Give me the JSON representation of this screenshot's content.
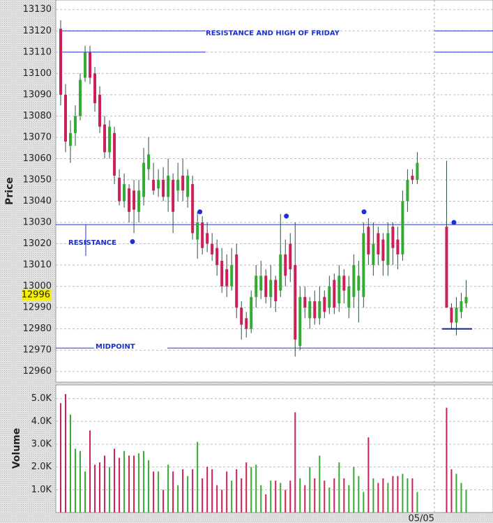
{
  "chart_data": [
    {
      "type": "candlestick",
      "axis_label": "Price",
      "x": [
        0,
        1,
        2,
        3,
        4,
        5,
        6,
        7,
        8,
        9,
        10,
        11,
        12,
        13,
        14,
        15,
        16,
        17,
        18,
        19,
        20,
        21,
        22,
        23,
        24,
        25,
        26,
        27,
        28,
        29,
        30,
        31,
        32,
        33,
        34,
        35,
        36,
        37,
        38,
        39,
        40,
        41,
        42,
        43,
        44,
        45,
        46,
        47,
        48,
        49,
        50,
        51,
        52,
        53,
        54,
        55,
        56,
        57,
        58,
        59,
        60,
        61,
        62,
        63,
        64,
        65,
        66,
        67,
        68,
        69,
        70,
        71,
        72,
        73,
        79,
        80,
        81,
        82,
        83
      ],
      "open": [
        13121,
        13090,
        13066,
        13072,
        13080,
        13098,
        13110,
        13100,
        13090,
        13076,
        13063,
        13072,
        13051,
        13040,
        13046,
        13045,
        13035,
        13042,
        13055,
        13050,
        13046,
        13050,
        13042,
        13050,
        13045,
        13052,
        13042,
        13048,
        13022,
        13030,
        13025,
        13020,
        13018,
        13012,
        13008,
        13000,
        13015,
        12990,
        12985,
        12980,
        12995,
        12998,
        13005,
        12995,
        13003,
        12998,
        13015,
        13020,
        13010,
        12972,
        12995,
        12985,
        12993,
        12985,
        12995,
        12990,
        13003,
        12992,
        13005,
        12990,
        12995,
        12998,
        12995,
        13028,
        13010,
        13025,
        13022,
        13010,
        13028,
        13022,
        13015,
        13040,
        13052,
        13050,
        13028,
        12990,
        12983,
        12988,
        12992
      ],
      "high": [
        13125,
        13095,
        13078,
        13085,
        13100,
        13113,
        13113,
        13103,
        13094,
        13080,
        13078,
        13075,
        13055,
        13053,
        13048,
        13050,
        13050,
        13065,
        13070,
        13058,
        13055,
        13056,
        13060,
        13053,
        13058,
        13060,
        13055,
        13052,
        13035,
        13033,
        13030,
        13025,
        13022,
        13018,
        13015,
        13018,
        13020,
        12993,
        12988,
        12998,
        13010,
        13012,
        13008,
        13010,
        13005,
        13034,
        13022,
        13025,
        13030,
        13000,
        13000,
        12995,
        12998,
        13000,
        12998,
        13005,
        13006,
        13010,
        13008,
        13005,
        13015,
        13012,
        13030,
        13032,
        13030,
        13028,
        13025,
        13030,
        13030,
        13028,
        13045,
        13055,
        13055,
        13063,
        13059,
        12992,
        12995,
        12997,
        13003
      ],
      "low": [
        13085,
        13063,
        13058,
        13066,
        13078,
        13096,
        13095,
        13082,
        13072,
        13060,
        13060,
        13048,
        13038,
        13037,
        13030,
        13025,
        13030,
        13038,
        13050,
        13043,
        13042,
        13040,
        13035,
        13025,
        13040,
        13040,
        13037,
        13022,
        13013,
        13015,
        13016,
        13012,
        13005,
        12997,
        12995,
        12998,
        12985,
        12975,
        12976,
        12978,
        12990,
        12994,
        12992,
        12990,
        12988,
        12995,
        13000,
        13002,
        12967,
        12970,
        12985,
        12980,
        12982,
        12982,
        12985,
        12987,
        12987,
        12988,
        12992,
        12985,
        12990,
        12983,
        12990,
        13010,
        13005,
        13010,
        13005,
        13005,
        13010,
        13008,
        13012,
        13035,
        13048,
        13048,
        12990,
        12980,
        12977,
        12985,
        12990
      ],
      "close": [
        13090,
        13068,
        13072,
        13080,
        13097,
        13110,
        13098,
        13086,
        13075,
        13063,
        13075,
        13052,
        13040,
        13048,
        13035,
        13036,
        13045,
        13058,
        13062,
        13045,
        13050,
        13042,
        13052,
        13035,
        13050,
        13045,
        13052,
        13025,
        13030,
        13018,
        13020,
        13015,
        13010,
        13000,
        13000,
        13010,
        12990,
        12982,
        12980,
        12995,
        13005,
        13005,
        12995,
        13003,
        12993,
        13015,
        13005,
        13008,
        12975,
        12995,
        12990,
        12993,
        12985,
        12993,
        12988,
        13000,
        12990,
        13005,
        12998,
        13000,
        13010,
        13005,
        13025,
        13015,
        13020,
        13015,
        13012,
        13025,
        13018,
        13015,
        13040,
        13050,
        13050,
        13058,
        12990,
        12983,
        12990,
        12993,
        12995
      ],
      "up_color": "#33aa33",
      "down_color": "#cc1f55",
      "xlim": [
        -1,
        88.5
      ],
      "xticks": [
        {
          "value": 76.5,
          "label": "05/05"
        }
      ],
      "ylim": [
        12955,
        13134.5
      ],
      "yticks": [
        12960,
        12970,
        12980,
        12990,
        13000,
        13010,
        13020,
        13030,
        13040,
        13050,
        13060,
        13070,
        13080,
        13090,
        13100,
        13110,
        13120,
        13130
      ],
      "last_price": 12996,
      "levels": [
        {
          "value": 13120,
          "label": "RESISTANCE AND HIGH OF FRIDAY"
        },
        {
          "value": 13110
        },
        {
          "value": 13029,
          "label": "RESISTANCE"
        },
        {
          "value": 12971,
          "label": "MIDPOINT"
        }
      ],
      "markers": [
        {
          "x": 14.7,
          "y": 13021
        },
        {
          "x": 28.5,
          "y": 13035
        },
        {
          "x": 46.2,
          "y": 13033
        },
        {
          "x": 62.1,
          "y": 13035
        },
        {
          "x": 80.5,
          "y": 13030
        }
      ],
      "grid": true
    },
    {
      "type": "bar",
      "axis_label": "Volume",
      "values": [
        4800,
        5200,
        4300,
        2800,
        2700,
        1800,
        3600,
        2100,
        2200,
        2500,
        2000,
        2800,
        2400,
        2700,
        2500,
        2500,
        2600,
        2700,
        2300,
        1800,
        1800,
        1000,
        2100,
        1800,
        1200,
        1900,
        1600,
        1900,
        3100,
        1500,
        2000,
        1900,
        1200,
        1000,
        1800,
        1400,
        1900,
        1500,
        2200,
        2000,
        2100,
        1200,
        800,
        1400,
        1400,
        1300,
        1000,
        1400,
        4400,
        1500,
        1200,
        2000,
        1500,
        2500,
        1400,
        1100,
        1500,
        2200,
        1500,
        1200,
        2000,
        1600,
        900,
        3300,
        1500,
        1300,
        1500,
        1300,
        1600,
        1600,
        1700,
        1500,
        1500,
        900,
        4600,
        1900,
        1700,
        1300,
        1000
      ],
      "ylim": [
        0,
        5600
      ],
      "yticks": [
        {
          "value": 1000,
          "label": "1.0K"
        },
        {
          "value": 2000,
          "label": "2.0K"
        },
        {
          "value": 3000,
          "label": "3.0K"
        },
        {
          "value": 4000,
          "label": "4.0K"
        },
        {
          "value": 5000,
          "label": "5.0K"
        }
      ],
      "grid": true
    }
  ]
}
